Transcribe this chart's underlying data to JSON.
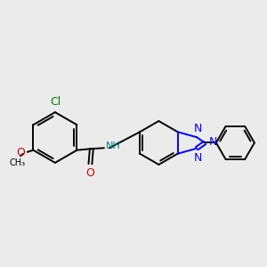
{
  "background_color": "#ebebeb",
  "bond_color": "#000000",
  "blue_color": "#0000ff",
  "red_color": "#cc0000",
  "green_color": "#008000",
  "teal_color": "#008080",
  "figsize": [
    3.0,
    3.0
  ],
  "dpi": 100,
  "xlim": [
    0.0,
    10.0
  ],
  "ylim": [
    3.2,
    8.2
  ]
}
